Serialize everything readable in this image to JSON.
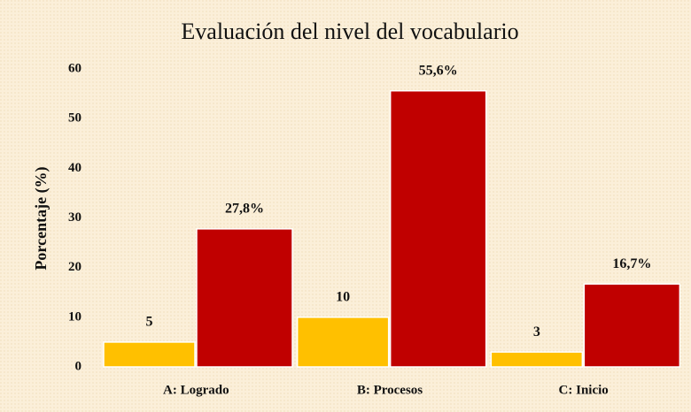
{
  "chart_data": {
    "type": "bar",
    "title": "Evaluación del nivel del vocabulario",
    "y_label": "Porcentaje (%)",
    "categories": [
      "A: Logrado",
      "B: Procesos",
      "C: Inicio"
    ],
    "series": [
      {
        "color": "#ffc000",
        "values": [
          5,
          10,
          3
        ]
      },
      {
        "color": "#c00000",
        "values": [
          27.8,
          55.6,
          16.7
        ],
        "value_labels": [
          "27,8%",
          "55,6%",
          "16,7%"
        ]
      }
    ],
    "ylim": [
      0,
      60
    ],
    "yticks": [
      0,
      10,
      20,
      30,
      40,
      50,
      60
    ],
    "grid": false
  }
}
